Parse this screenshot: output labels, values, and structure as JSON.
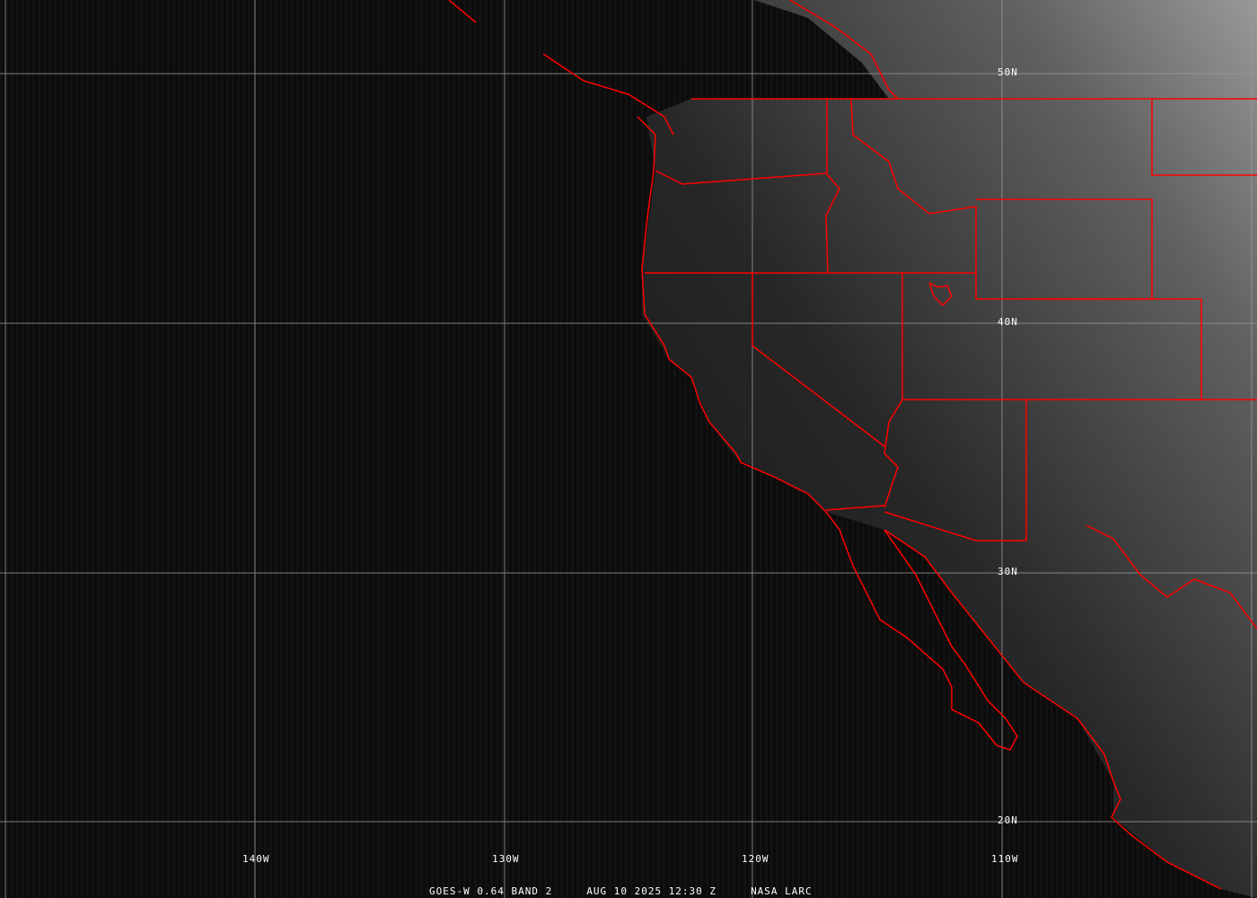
{
  "caption": {
    "satellite": "GOES-W 0.64 BAND 2",
    "datetime": "AUG 10 2025 12:30 Z",
    "source": "NASA LARC"
  },
  "grid": {
    "longitudes": [
      "140W",
      "130W",
      "120W",
      "110W"
    ],
    "latitudes": [
      "50N",
      "40N",
      "30N",
      "20N"
    ]
  },
  "colors": {
    "boundaries": "#ff0000",
    "grid": "#9a9a9a",
    "ocean": "#0b0b0b",
    "land_bright": "#9a9a9a"
  }
}
